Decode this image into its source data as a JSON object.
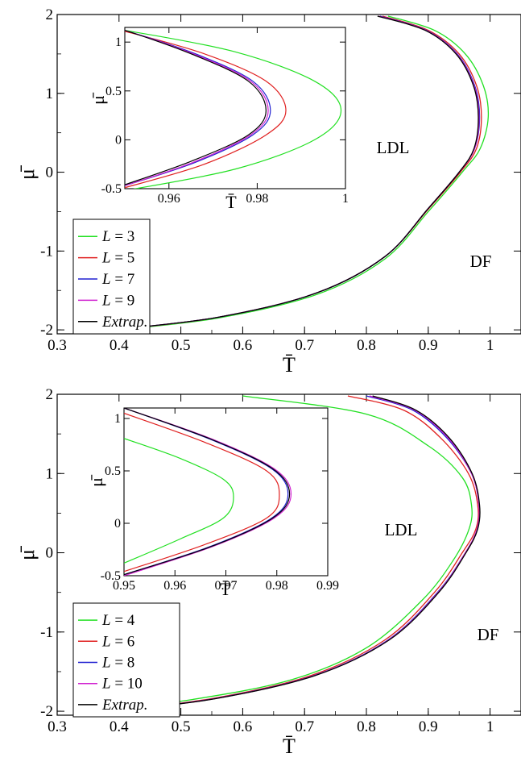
{
  "chart_data": [
    {
      "type": "line",
      "xlabel": "T̄",
      "ylabel": "μ̄",
      "xlim": [
        0.3,
        1.05
      ],
      "ylim": [
        -2.05,
        2.0
      ],
      "x_ticks": [
        "0.3",
        "0.4",
        "0.5",
        "0.6",
        "0.7",
        "0.8",
        "0.9",
        "1"
      ],
      "y_ticks": [
        "-2",
        "-1",
        "0",
        "1",
        "2"
      ],
      "annotations": [
        "LDL",
        "DF"
      ],
      "legend_position": "bottom-left",
      "series": [
        {
          "name": "L = 3",
          "italic_var": "L",
          "num": "3",
          "color": "#22e022",
          "x": [
            0.398,
            0.56,
            0.72,
            0.83,
            0.9,
            0.955,
            0.984,
            0.997,
            0.989,
            0.96,
            0.91,
            0.835
          ],
          "y": [
            -2.0,
            -1.85,
            -1.55,
            -1.1,
            -0.5,
            0.0,
            0.3,
            0.7,
            1.1,
            1.5,
            1.8,
            1.98
          ]
        },
        {
          "name": "L = 5",
          "italic_var": "L",
          "num": "5",
          "color": "#e02020",
          "x": [
            0.392,
            0.56,
            0.72,
            0.83,
            0.9,
            0.952,
            0.978,
            0.986,
            0.978,
            0.95,
            0.9,
            0.826
          ],
          "y": [
            -2.0,
            -1.84,
            -1.53,
            -1.07,
            -0.47,
            0.0,
            0.3,
            0.7,
            1.1,
            1.5,
            1.8,
            1.98
          ]
        },
        {
          "name": "L = 7",
          "italic_var": "L",
          "num": "7",
          "color": "#2020d0",
          "x": [
            0.39,
            0.56,
            0.72,
            0.83,
            0.9,
            0.95,
            0.975,
            0.983,
            0.975,
            0.947,
            0.897,
            0.822
          ],
          "y": [
            -2.0,
            -1.84,
            -1.53,
            -1.07,
            -0.46,
            0.0,
            0.3,
            0.7,
            1.1,
            1.5,
            1.8,
            1.98
          ]
        },
        {
          "name": "L = 9",
          "italic_var": "L",
          "num": "9",
          "color": "#d020d0",
          "x": [
            0.39,
            0.56,
            0.72,
            0.83,
            0.9,
            0.95,
            0.975,
            0.982,
            0.974,
            0.946,
            0.896,
            0.82
          ],
          "y": [
            -2.0,
            -1.84,
            -1.53,
            -1.07,
            -0.46,
            0.0,
            0.3,
            0.7,
            1.1,
            1.5,
            1.8,
            1.98
          ]
        },
        {
          "name": "Extrap.",
          "italic_var": "",
          "num": "Extrap.",
          "color": "#000000",
          "x": [
            0.389,
            0.56,
            0.72,
            0.83,
            0.9,
            0.95,
            0.974,
            0.981,
            0.973,
            0.945,
            0.895,
            0.818
          ],
          "y": [
            -2.0,
            -1.84,
            -1.53,
            -1.07,
            -0.46,
            0.0,
            0.3,
            0.7,
            1.1,
            1.5,
            1.8,
            1.98
          ]
        }
      ],
      "inset": {
        "xlabel": "T̄",
        "ylabel": "μ̄",
        "xlim": [
          0.95,
          1.0
        ],
        "ylim": [
          -0.5,
          1.15
        ],
        "x_ticks": [
          "0.96",
          "0.98",
          "1"
        ],
        "y_ticks": [
          "-0.5",
          "0",
          "0.5",
          "1"
        ],
        "series": [
          {
            "name": "L = 3",
            "color": "#22e022",
            "x": [
              0.95,
              0.975,
              0.993,
              0.999,
              0.993,
              0.975,
              0.95,
              0.943
            ],
            "y": [
              -0.52,
              -0.3,
              0.0,
              0.3,
              0.6,
              0.9,
              1.12,
              1.15
            ]
          },
          {
            "name": "L = 5",
            "color": "#e02020",
            "x": [
              0.95,
              0.968,
              0.982,
              0.9865,
              0.982,
              0.968,
              0.95,
              0.945
            ],
            "y": [
              -0.49,
              -0.25,
              0.05,
              0.3,
              0.6,
              0.88,
              1.11,
              1.15
            ]
          },
          {
            "name": "L = 7",
            "color": "#2020d0",
            "x": [
              0.95,
              0.966,
              0.979,
              0.983,
              0.979,
              0.966,
              0.95,
              0.946
            ],
            "y": [
              -0.47,
              -0.23,
              0.05,
              0.3,
              0.6,
              0.88,
              1.12,
              1.15
            ]
          },
          {
            "name": "L = 9",
            "color": "#d020d0",
            "x": [
              0.95,
              0.9655,
              0.9785,
              0.9825,
              0.9785,
              0.9655,
              0.95,
              0.946
            ],
            "y": [
              -0.47,
              -0.23,
              0.05,
              0.3,
              0.6,
              0.88,
              1.12,
              1.15
            ]
          },
          {
            "name": "Extrap.",
            "color": "#000000",
            "x": [
              0.95,
              0.965,
              0.978,
              0.982,
              0.978,
              0.965,
              0.95,
              0.946
            ],
            "y": [
              -0.46,
              -0.22,
              0.05,
              0.3,
              0.6,
              0.88,
              1.12,
              1.15
            ]
          }
        ]
      }
    },
    {
      "type": "line",
      "xlabel": "T̄",
      "ylabel": "μ̄",
      "xlim": [
        0.3,
        1.05
      ],
      "ylim": [
        -2.05,
        2.0
      ],
      "x_ticks": [
        "0.3",
        "0.4",
        "0.5",
        "0.6",
        "0.7",
        "0.8",
        "0.9",
        "1"
      ],
      "y_ticks": [
        "-2",
        "-1",
        "0",
        "1",
        "2"
      ],
      "annotations": [
        "LDL",
        "DF"
      ],
      "legend_position": "bottom-left",
      "series": [
        {
          "name": "L = 4",
          "italic_var": "L",
          "num": "4",
          "color": "#22e022",
          "x": [
            0.36,
            0.52,
            0.68,
            0.8,
            0.89,
            0.94,
            0.966,
            0.97,
            0.955,
            0.9,
            0.8,
            0.6
          ],
          "y": [
            -2.0,
            -1.85,
            -1.6,
            -1.2,
            -0.6,
            -0.1,
            0.3,
            0.6,
            0.95,
            1.35,
            1.75,
            1.98
          ]
        },
        {
          "name": "L = 6",
          "italic_var": "L",
          "num": "6",
          "color": "#e02020",
          "x": [
            0.385,
            0.55,
            0.71,
            0.83,
            0.91,
            0.955,
            0.977,
            0.98,
            0.965,
            0.92,
            0.86,
            0.77
          ],
          "y": [
            -2.0,
            -1.84,
            -1.55,
            -1.1,
            -0.5,
            0.0,
            0.3,
            0.6,
            1.0,
            1.45,
            1.8,
            1.98
          ]
        },
        {
          "name": "L = 8",
          "italic_var": "L",
          "num": "8",
          "color": "#2020d0",
          "x": [
            0.39,
            0.555,
            0.715,
            0.835,
            0.915,
            0.96,
            0.979,
            0.982,
            0.97,
            0.93,
            0.875,
            0.8
          ],
          "y": [
            -2.0,
            -1.84,
            -1.55,
            -1.1,
            -0.5,
            0.0,
            0.3,
            0.6,
            1.0,
            1.45,
            1.8,
            1.98
          ]
        },
        {
          "name": "L = 10",
          "italic_var": "L",
          "num": "10",
          "color": "#d020d0",
          "x": [
            0.39,
            0.556,
            0.716,
            0.836,
            0.916,
            0.96,
            0.979,
            0.982,
            0.97,
            0.932,
            0.878,
            0.805
          ],
          "y": [
            -2.0,
            -1.84,
            -1.55,
            -1.1,
            -0.5,
            0.0,
            0.3,
            0.6,
            1.0,
            1.45,
            1.8,
            1.98
          ]
        },
        {
          "name": "Extrap.",
          "italic_var": "",
          "num": "Extrap.",
          "color": "#000000",
          "x": [
            0.391,
            0.557,
            0.717,
            0.837,
            0.917,
            0.961,
            0.98,
            0.983,
            0.971,
            0.934,
            0.88,
            0.81
          ],
          "y": [
            -2.0,
            -1.84,
            -1.55,
            -1.1,
            -0.5,
            0.0,
            0.3,
            0.6,
            1.0,
            1.45,
            1.8,
            1.98
          ]
        }
      ],
      "inset": {
        "xlabel": "T̄",
        "ylabel": "μ̄",
        "xlim": [
          0.95,
          0.99
        ],
        "ylim": [
          -0.5,
          1.1
        ],
        "x_ticks": [
          "0.95",
          "0.96",
          "0.97",
          "0.98",
          "0.99"
        ],
        "y_ticks": [
          "-0.5",
          "0",
          "0.5",
          "1"
        ],
        "series": [
          {
            "name": "L = 4",
            "color": "#22e022",
            "x": [
              0.95,
              0.961,
              0.9695,
              0.9715,
              0.9695,
              0.961,
              0.95
            ],
            "y": [
              -0.38,
              -0.15,
              0.05,
              0.25,
              0.42,
              0.62,
              0.81
            ]
          },
          {
            "name": "L = 6",
            "color": "#e02020",
            "x": [
              0.95,
              0.966,
              0.978,
              0.9805,
              0.978,
              0.966,
              0.95
            ],
            "y": [
              -0.46,
              -0.2,
              0.05,
              0.27,
              0.5,
              0.77,
              1.05
            ]
          },
          {
            "name": "L = 8",
            "color": "#2020d0",
            "x": [
              0.95,
              0.967,
              0.979,
              0.9822,
              0.979,
              0.967,
              0.95
            ],
            "y": [
              -0.49,
              -0.22,
              0.05,
              0.28,
              0.52,
              0.8,
              1.1
            ]
          },
          {
            "name": "L = 10",
            "color": "#d020d0",
            "x": [
              0.95,
              0.9675,
              0.9795,
              0.9828,
              0.9795,
              0.9675,
              0.95
            ],
            "y": [
              -0.5,
              -0.22,
              0.05,
              0.28,
              0.52,
              0.8,
              1.1
            ]
          },
          {
            "name": "Extrap.",
            "color": "#000000",
            "x": [
              0.95,
              0.9672,
              0.9792,
              0.9825,
              0.9792,
              0.9672,
              0.95
            ],
            "y": [
              -0.49,
              -0.22,
              0.05,
              0.28,
              0.52,
              0.8,
              1.1
            ]
          }
        ]
      }
    }
  ]
}
